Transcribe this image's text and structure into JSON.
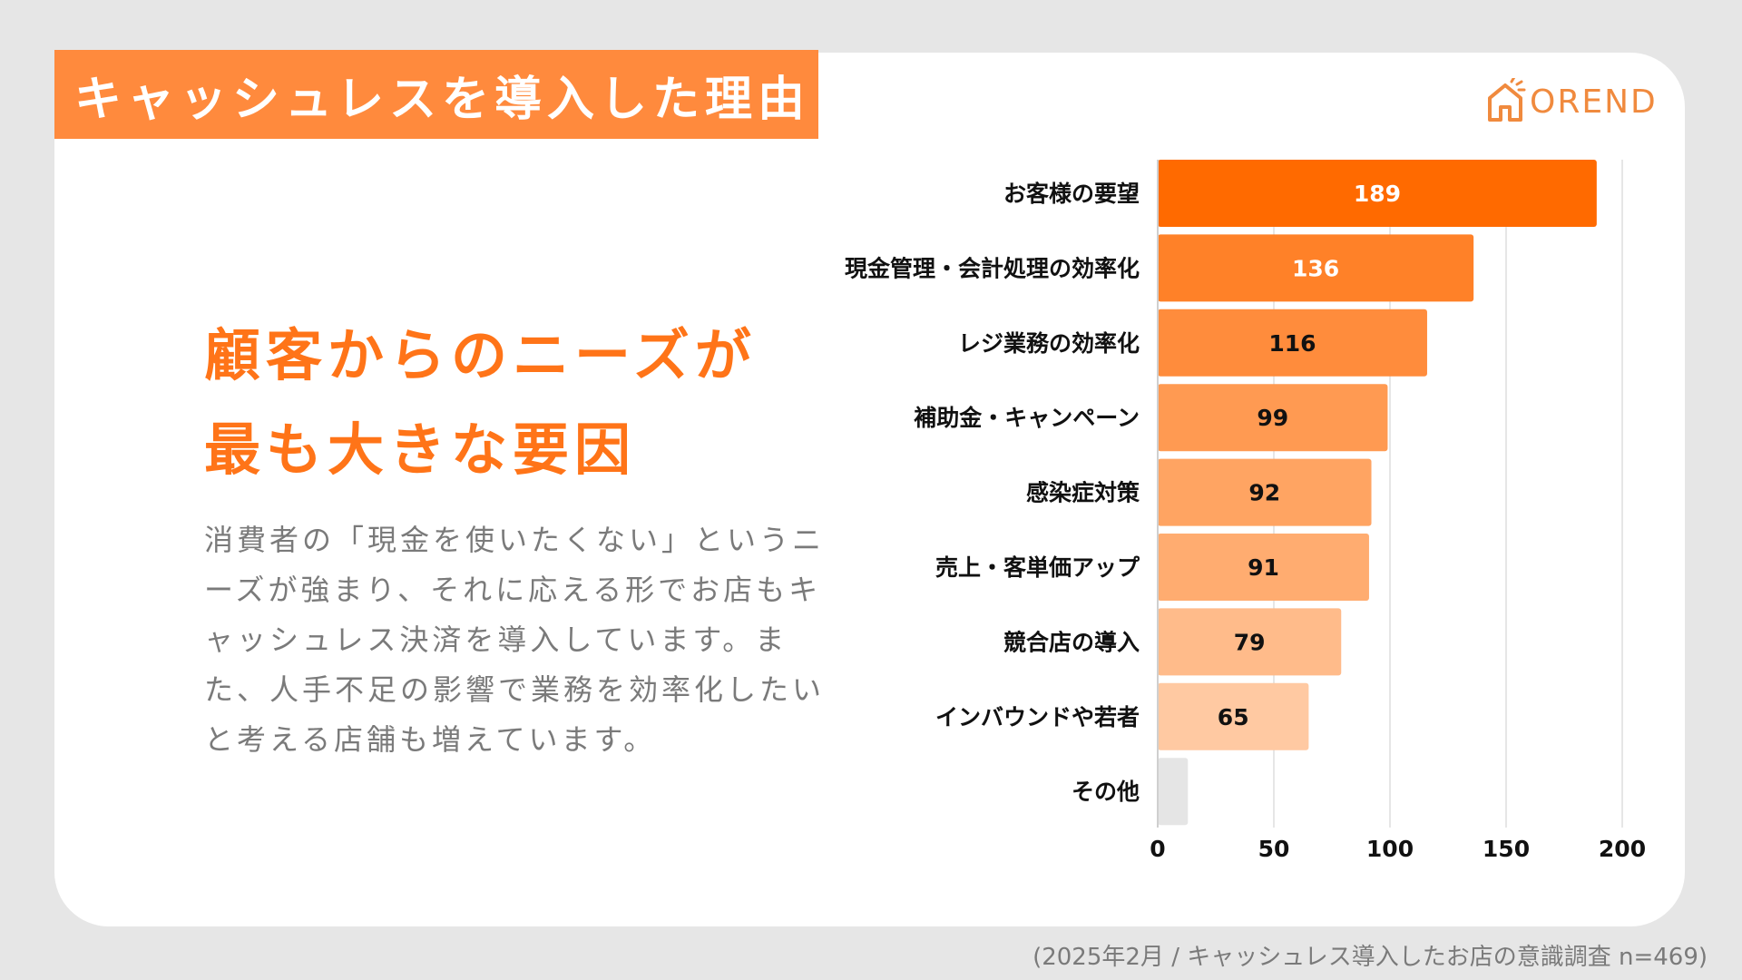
{
  "title": "キャッシュレスを導入した理由",
  "logo": {
    "text": "OREND",
    "icon": "house-logo-icon"
  },
  "headline": {
    "line1": "顧客からのニーズが",
    "line2": "最も大きな要因"
  },
  "body_text": "消費者の「現金を使いたくない」というニーズが強まり、それに応える形でお店もキャッシュレス決済を導入しています。また、人手不足の影響で業務を効率化したいと考える店舗も増えています。",
  "footnote": "(2025年2月 / キャッシュレス導入したお店の意識調査 n=469)",
  "colors": {
    "accent": "#ff8a3d",
    "headline": "#ff7418",
    "bars": [
      "#ff6a00",
      "#ff8128",
      "#ff8c3c",
      "#ff9a52",
      "#ffa462",
      "#ffac70",
      "#ffbb8a",
      "#ffc9a2",
      "#e5e5e5"
    ]
  },
  "chart_data": {
    "type": "bar",
    "orientation": "horizontal",
    "categories": [
      "お客様の要望",
      "現金管理・会計処理の効率化",
      "レジ業務の効率化",
      "補助金・キャンペーン",
      "感染症対策",
      "売上・客単価アップ",
      "競合店の導入",
      "インバウンドや若者",
      "その他"
    ],
    "values": [
      189,
      136,
      116,
      99,
      92,
      91,
      79,
      65,
      13
    ],
    "value_labels": [
      "189",
      "136",
      "116",
      "99",
      "92",
      "91",
      "79",
      "65",
      ""
    ],
    "xlim": [
      0,
      200
    ],
    "xticks": [
      "0",
      "50",
      "100",
      "150",
      "200"
    ],
    "grid": true,
    "legend": "none"
  }
}
